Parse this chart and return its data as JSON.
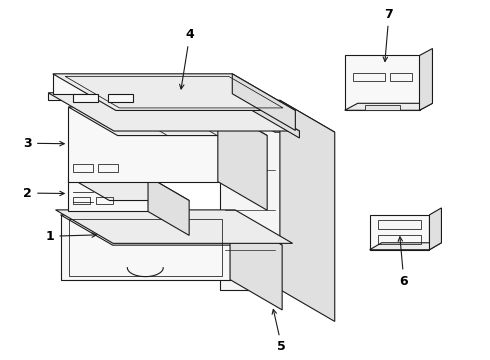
{
  "background_color": "#ffffff",
  "line_color": "#1a1a1a",
  "label_color": "#000000",
  "fig_width": 4.9,
  "fig_height": 3.6,
  "dpi": 100,
  "face_color": "#f8f8f8",
  "top_color": "#ececec",
  "right_color": "#e0e0e0",
  "lw": 0.8
}
